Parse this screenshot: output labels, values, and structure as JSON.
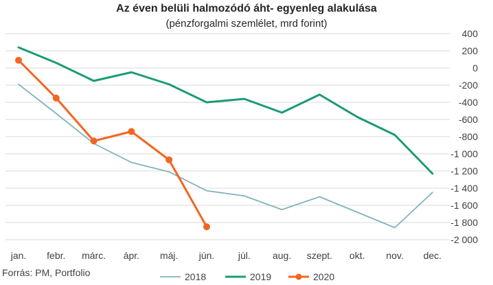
{
  "chart_data": {
    "type": "line",
    "title": "Az éven belüli halmozódó áht- egyenleg alakulása",
    "subtitle": "(pénzforgalmi szemlélet, mrd forint)",
    "categories": [
      "jan.",
      "febr.",
      "márc.",
      "ápr.",
      "máj.",
      "jún.",
      "júl.",
      "aug.",
      "szept.",
      "okt.",
      "nov.",
      "dec."
    ],
    "series": [
      {
        "name": "2018",
        "color": "#7fb3b8",
        "marker": false,
        "values": [
          -190,
          -530,
          -880,
          -1100,
          -1210,
          -1430,
          -1490,
          -1650,
          -1500,
          -1680,
          -1860,
          -1450
        ]
      },
      {
        "name": "2019",
        "color": "#1a9b74",
        "marker": false,
        "values": [
          240,
          60,
          -150,
          -50,
          -190,
          -400,
          -360,
          -520,
          -310,
          -570,
          -780,
          -1230
        ]
      },
      {
        "name": "2020",
        "color": "#f26522",
        "marker": true,
        "values": [
          90,
          -350,
          -850,
          -740,
          -1070,
          -1850,
          null,
          null,
          null,
          null,
          null,
          null
        ]
      }
    ],
    "ylim": [
      -2000,
      400
    ],
    "yticks": [
      400,
      200,
      0,
      -200,
      -400,
      -600,
      -800,
      -1000,
      -1200,
      -1400,
      -1600,
      -1800,
      -2000
    ],
    "ytick_labels": [
      "400",
      "200",
      "0",
      "-200",
      "-400",
      "-600",
      "-800",
      "-1 000",
      "-1 200",
      "-1 400",
      "-1 600",
      "-1 800",
      "-2 000"
    ],
    "grid": true,
    "y_axis_side": "right",
    "legend": "bottom"
  },
  "source": "Forrás: PM, Portfolio"
}
